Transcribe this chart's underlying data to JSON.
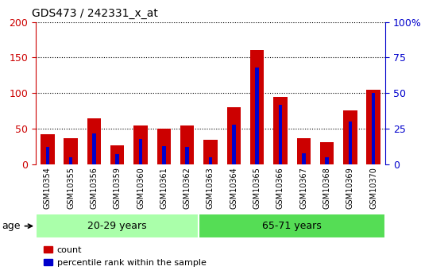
{
  "title": "GDS473 / 242331_x_at",
  "samples": [
    "GSM10354",
    "GSM10355",
    "GSM10356",
    "GSM10359",
    "GSM10360",
    "GSM10361",
    "GSM10362",
    "GSM10363",
    "GSM10364",
    "GSM10365",
    "GSM10366",
    "GSM10367",
    "GSM10368",
    "GSM10369",
    "GSM10370"
  ],
  "count_values": [
    42,
    37,
    65,
    27,
    55,
    50,
    55,
    35,
    80,
    160,
    95,
    37,
    31,
    76,
    105
  ],
  "percentile_values": [
    12,
    5,
    22,
    7,
    18,
    13,
    12,
    5,
    28,
    68,
    42,
    8,
    5,
    30,
    50
  ],
  "group1_label": "20-29 years",
  "group2_label": "65-71 years",
  "group1_count": 7,
  "group2_count": 8,
  "bar_color_count": "#cc0000",
  "bar_color_pct": "#0000cc",
  "ylim_left": [
    0,
    200
  ],
  "yticks_left": [
    0,
    50,
    100,
    150,
    200
  ],
  "ytick_labels_left": [
    "0",
    "50",
    "100",
    "150",
    "200"
  ],
  "yticks_right_vals": [
    0,
    50,
    100,
    150,
    200
  ],
  "ytick_labels_right": [
    "0",
    "25",
    "50",
    "75",
    "100%"
  ],
  "group1_bg": "#aaffaa",
  "group2_bg": "#55dd55",
  "xlabel_age": "age",
  "legend_count": "count",
  "legend_pct": "percentile rank within the sample",
  "bar_width": 0.6,
  "pct_bar_width": 0.15,
  "grid_color": "black",
  "plot_bg": "#ffffff",
  "xtick_bg": "#cccccc"
}
